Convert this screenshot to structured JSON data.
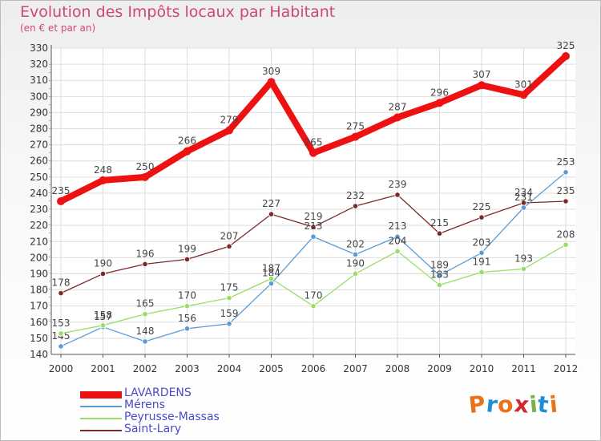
{
  "header": {
    "title": "Evolution des Impôts locaux par Habitant",
    "subtitle": "(en € et par an)"
  },
  "logo": {
    "letters": [
      "P",
      "r",
      "o",
      "x",
      "i",
      "t",
      "i"
    ],
    "colors": [
      "#e8731a",
      "#1e8fd6",
      "#e8731a",
      "#d4262c",
      "#7cb342",
      "#1e8fd6",
      "#e8731a"
    ]
  },
  "chart_data": {
    "type": "line",
    "title": "Evolution des Impôts locaux par Habitant",
    "subtitle": "(en € et par an)",
    "xlabel": "",
    "ylabel": "",
    "categories": [
      "2000",
      "2001",
      "2002",
      "2003",
      "2004",
      "2005",
      "2006",
      "2007",
      "2008",
      "2009",
      "2010",
      "2011",
      "2012"
    ],
    "ylim": [
      140,
      330
    ],
    "yticks": [
      140,
      150,
      160,
      170,
      180,
      190,
      200,
      210,
      220,
      230,
      240,
      250,
      260,
      270,
      280,
      290,
      300,
      310,
      320,
      330
    ],
    "grid": true,
    "legend_position": "bottom-left",
    "series": [
      {
        "name": "LAVARDENS",
        "color": "#ee1111",
        "values": [
          235,
          248,
          250,
          266,
          279,
          309,
          265,
          275,
          287,
          296,
          307,
          301,
          325
        ]
      },
      {
        "name": "Mérens",
        "color": "#5b9bd5",
        "values": [
          145,
          157,
          148,
          156,
          159,
          184,
          213,
          202,
          213,
          189,
          203,
          231,
          253
        ]
      },
      {
        "name": "Peyrusse-Massas",
        "color": "#99dd66",
        "values": [
          153,
          158,
          165,
          170,
          175,
          187,
          170,
          190,
          204,
          183,
          191,
          193,
          208
        ]
      },
      {
        "name": "Saint-Lary",
        "color": "#7a2a2a",
        "values": [
          178,
          190,
          196,
          199,
          207,
          227,
          219,
          232,
          239,
          215,
          225,
          234,
          235
        ]
      }
    ]
  }
}
